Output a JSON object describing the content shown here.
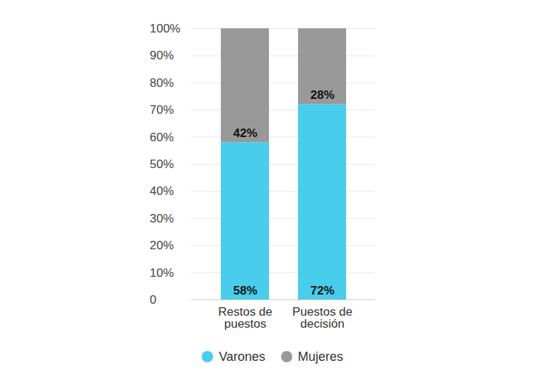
{
  "chart_data": {
    "type": "bar",
    "stacked": true,
    "categories": [
      "Restos de puestos",
      "Puestos de decisión"
    ],
    "series": [
      {
        "name": "Varones",
        "color": "#48cdec",
        "values": [
          58,
          72
        ],
        "value_labels": [
          "58%",
          "72%"
        ]
      },
      {
        "name": "Mujeres",
        "color": "#999999",
        "values": [
          42,
          28
        ],
        "value_labels": [
          "42%",
          "28%"
        ]
      }
    ],
    "ylim": [
      0,
      100
    ],
    "yticks": [
      0,
      {
        "value": 10,
        "label": "10%"
      },
      {
        "value": 20,
        "label": "20%"
      },
      {
        "value": 30,
        "label": "30%"
      },
      {
        "value": 40,
        "label": "40%"
      },
      {
        "value": 50,
        "label": "50%"
      },
      {
        "value": 60,
        "label": "60%"
      },
      {
        "value": 70,
        "label": "70%"
      },
      {
        "value": 80,
        "label": "80%"
      },
      {
        "value": 90,
        "label": "90%"
      },
      {
        "value": 100,
        "label": "100%"
      }
    ],
    "grid": true,
    "data_labels": true,
    "legend": "bottom"
  }
}
